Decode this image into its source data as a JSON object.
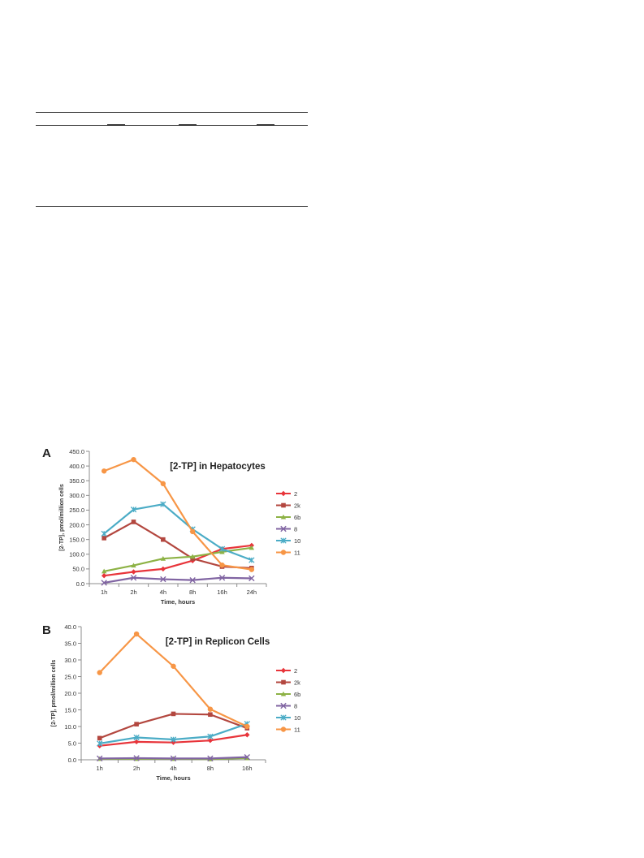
{
  "figure": {
    "panels": [
      "A",
      "B"
    ]
  },
  "chart_data": [
    {
      "type": "line",
      "title": "[2-TP] in Hepatocytes",
      "xlabel": "Time, hours",
      "ylabel": "[2-TP], pmol/million cells",
      "categories": [
        "1h",
        "2h",
        "4h",
        "8h",
        "16h",
        "24h"
      ],
      "ylim": [
        0,
        450
      ],
      "yticks": [
        "0.0",
        "50.0",
        "100.0",
        "150.0",
        "200.0",
        "250.0",
        "300.0",
        "350.0",
        "400.0",
        "450.0"
      ],
      "grid": false,
      "legend": "right",
      "series": [
        {
          "name": "2",
          "color": "#e8343a",
          "marker": "diamond",
          "values": [
            27,
            40,
            50,
            78,
            118,
            130
          ]
        },
        {
          "name": "2k",
          "color": "#b3473f",
          "marker": "square",
          "values": [
            155,
            210,
            150,
            85,
            58,
            53
          ]
        },
        {
          "name": "6b",
          "color": "#8db245",
          "marker": "triangle",
          "values": [
            42,
            62,
            85,
            92,
            108,
            122
          ]
        },
        {
          "name": "8",
          "color": "#8064a2",
          "marker": "x",
          "values": [
            3,
            20,
            15,
            12,
            20,
            18
          ]
        },
        {
          "name": "10",
          "color": "#4bacc6",
          "marker": "star",
          "values": [
            170,
            252,
            270,
            185,
            118,
            80
          ]
        },
        {
          "name": "11",
          "color": "#f79646",
          "marker": "circle",
          "values": [
            383,
            422,
            340,
            177,
            63,
            48
          ]
        }
      ]
    },
    {
      "type": "line",
      "title": "[2-TP] in Replicon Cells",
      "xlabel": "Time, hours",
      "ylabel": "[2-TP], pmol/million cells",
      "categories": [
        "1h",
        "2h",
        "4h",
        "8h",
        "16h"
      ],
      "ylim": [
        0,
        40
      ],
      "yticks": [
        "0.0",
        "5.0",
        "10.0",
        "15.0",
        "20.0",
        "25.0",
        "30.0",
        "35.0",
        "40.0"
      ],
      "grid": false,
      "legend": "right",
      "series": [
        {
          "name": "2",
          "color": "#e8343a",
          "marker": "diamond",
          "values": [
            4.2,
            5.4,
            5.2,
            5.8,
            7.5
          ]
        },
        {
          "name": "2k",
          "color": "#b3473f",
          "marker": "square",
          "values": [
            6.5,
            10.7,
            13.8,
            13.6,
            9.5
          ]
        },
        {
          "name": "6b",
          "color": "#8db245",
          "marker": "triangle",
          "values": [
            0.3,
            0.3,
            0.3,
            0.2,
            0.5
          ]
        },
        {
          "name": "8",
          "color": "#8064a2",
          "marker": "x",
          "values": [
            0.4,
            0.5,
            0.4,
            0.4,
            0.8
          ]
        },
        {
          "name": "10",
          "color": "#4bacc6",
          "marker": "star",
          "values": [
            4.9,
            6.7,
            6.1,
            7.0,
            10.8
          ]
        },
        {
          "name": "11",
          "color": "#f79646",
          "marker": "circle",
          "values": [
            26.2,
            37.8,
            28.1,
            15.2,
            10.0
          ]
        }
      ]
    }
  ]
}
